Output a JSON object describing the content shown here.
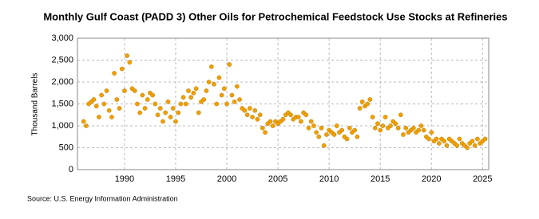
{
  "chart_data": {
    "type": "scatter",
    "title": "Monthly Gulf Coast (PADD 3) Other Oils for Petrochemical Feedstock Use Stocks at Refineries",
    "y_label": "Thousand Barrels",
    "source": "Source: U.S. Energy Information Administration",
    "color": "#f0a000",
    "grid": true,
    "xlim": [
      1985.4,
      2025.6
    ],
    "xticks": [
      1990,
      1995,
      2000,
      2005,
      2010,
      2015,
      2020,
      2025
    ],
    "ylim": [
      0,
      3000
    ],
    "yticks": [
      0,
      500,
      {
        "value": 1000,
        "label": "1,000"
      },
      {
        "value": 1500,
        "label": "1,500"
      },
      {
        "value": 2000,
        "label": "2,000"
      },
      {
        "value": 2500,
        "label": "2,500"
      },
      {
        "value": 3000,
        "label": "3,000"
      }
    ],
    "x": [
      1986,
      1986.25,
      1986.5,
      1986.75,
      1987,
      1987.25,
      1987.5,
      1987.75,
      1988,
      1988.25,
      1988.5,
      1988.75,
      1989,
      1989.25,
      1989.5,
      1989.75,
      1990,
      1990.25,
      1990.5,
      1990.75,
      1991,
      1991.25,
      1991.5,
      1991.75,
      1992,
      1992.25,
      1992.5,
      1992.75,
      1993,
      1993.25,
      1993.5,
      1993.75,
      1994,
      1994.25,
      1994.5,
      1994.75,
      1995,
      1995.25,
      1995.5,
      1995.75,
      1996,
      1996.25,
      1996.5,
      1996.75,
      1997,
      1997.25,
      1997.5,
      1997.75,
      1998,
      1998.25,
      1998.5,
      1998.75,
      1999,
      1999.25,
      1999.5,
      1999.75,
      2000,
      2000.25,
      2000.5,
      2000.75,
      2001,
      2001.25,
      2001.5,
      2001.75,
      2002,
      2002.25,
      2002.5,
      2002.75,
      2003,
      2003.25,
      2003.5,
      2003.75,
      2004,
      2004.25,
      2004.5,
      2004.75,
      2005,
      2005.25,
      2005.5,
      2005.75,
      2006,
      2006.25,
      2006.5,
      2006.75,
      2007,
      2007.25,
      2007.5,
      2007.75,
      2008,
      2008.25,
      2008.5,
      2008.75,
      2009,
      2009.25,
      2009.5,
      2009.75,
      2010,
      2010.25,
      2010.5,
      2010.75,
      2011,
      2011.25,
      2011.5,
      2011.75,
      2012,
      2012.25,
      2012.5,
      2012.75,
      2013,
      2013.25,
      2013.5,
      2013.75,
      2014,
      2014.25,
      2014.5,
      2014.75,
      2015,
      2015.25,
      2015.5,
      2015.75,
      2016,
      2016.25,
      2016.5,
      2016.75,
      2017,
      2017.25,
      2017.5,
      2017.75,
      2018,
      2018.25,
      2018.5,
      2018.75,
      2019,
      2019.25,
      2019.5,
      2019.75,
      2020,
      2020.25,
      2020.5,
      2020.75,
      2021,
      2021.25,
      2021.5,
      2021.75,
      2022,
      2022.25,
      2022.5,
      2022.75,
      2023,
      2023.25,
      2023.5,
      2023.75,
      2024,
      2024.25,
      2024.5,
      2024.75,
      2025,
      2025.25
    ],
    "values": [
      1100,
      1000,
      1500,
      1550,
      1600,
      1450,
      1200,
      1700,
      1500,
      1800,
      1350,
      1200,
      2200,
      1600,
      1400,
      2300,
      1800,
      2600,
      2450,
      1850,
      1800,
      1500,
      1300,
      1700,
      1400,
      1600,
      1750,
      1700,
      1500,
      1250,
      1400,
      1100,
      1300,
      1550,
      1200,
      1400,
      1100,
      1300,
      1500,
      1650,
      1500,
      1800,
      1650,
      1750,
      1850,
      1300,
      1550,
      1600,
      1800,
      2000,
      2350,
      1950,
      1500,
      2100,
      1700,
      1850,
      1500,
      2400,
      1700,
      1550,
      1900,
      1600,
      1400,
      1350,
      1250,
      1400,
      1200,
      1350,
      1150,
      1250,
      950,
      850,
      1050,
      1100,
      1000,
      1100,
      1050,
      1100,
      1150,
      1250,
      1300,
      1250,
      1150,
      1200,
      1200,
      1100,
      1300,
      1250,
      950,
      1100,
      1000,
      850,
      750,
      950,
      550,
      800,
      900,
      850,
      800,
      1000,
      850,
      900,
      750,
      700,
      950,
      850,
      900,
      750,
      1400,
      1550,
      1450,
      1500,
      1600,
      1200,
      950,
      1050,
      900,
      1000,
      1200,
      950,
      1000,
      1100,
      1050,
      950,
      1250,
      800,
      950,
      850,
      900,
      950,
      850,
      900,
      1000,
      900,
      750,
      700,
      850,
      650,
      700,
      600,
      700,
      650,
      550,
      700,
      650,
      600,
      550,
      700,
      600,
      550,
      500,
      600,
      650,
      550,
      700,
      600,
      650,
      700
    ]
  }
}
